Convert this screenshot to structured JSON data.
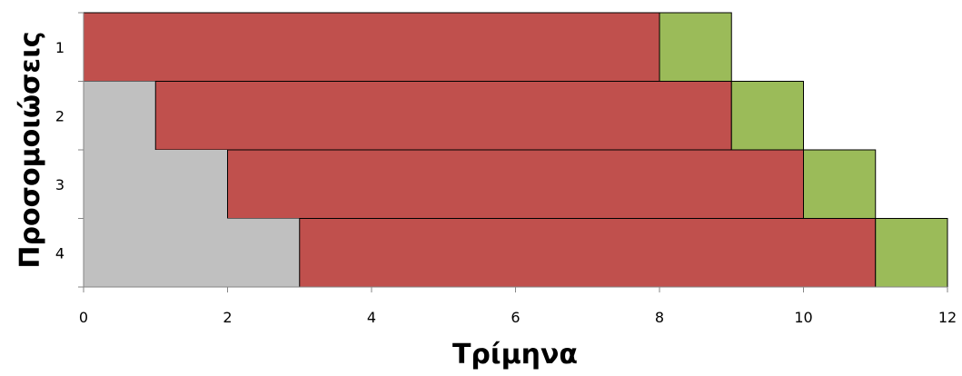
{
  "chart_data": {
    "type": "bar",
    "orientation": "horizontal",
    "stacked": true,
    "xlabel": "Τρίμηνα",
    "ylabel": "Προσομοιώσεις",
    "xlim": [
      0,
      12
    ],
    "xticks": [
      0,
      2,
      4,
      6,
      8,
      10,
      12
    ],
    "categories": [
      "1",
      "2",
      "3",
      "4"
    ],
    "grid": false,
    "legend": "none",
    "series": [
      {
        "color": "#c0c0c0",
        "values": [
          0,
          1,
          2,
          3
        ]
      },
      {
        "color": "#c0504d",
        "values": [
          8,
          8,
          8,
          8
        ]
      },
      {
        "color": "#9bbb59",
        "values": [
          1,
          1,
          1,
          1
        ]
      }
    ]
  }
}
